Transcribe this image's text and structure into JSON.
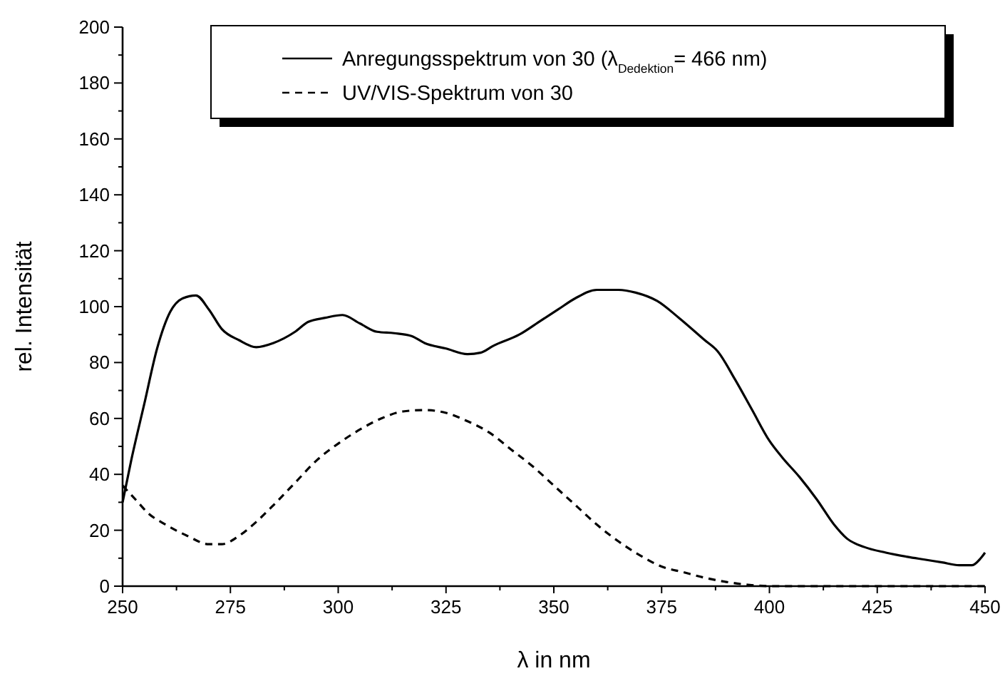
{
  "chart_data": {
    "type": "line",
    "xlabel": "λ in nm",
    "ylabel": "rel. Intensität",
    "xlim": [
      250,
      450
    ],
    "ylim": [
      0,
      200
    ],
    "xticks": [
      250,
      {
        "value": 262.5,
        "label": null
      },
      275,
      {
        "value": 287.5,
        "label": null
      },
      300,
      {
        "value": 312.5,
        "label": null
      },
      325,
      {
        "value": 337.5,
        "label": null
      },
      350,
      {
        "value": 362.5,
        "label": null
      },
      375,
      {
        "value": 387.5,
        "label": null
      },
      400,
      {
        "value": 412.5,
        "label": null
      },
      425,
      {
        "value": 437.5,
        "label": null
      },
      450
    ],
    "yticks": [
      0,
      {
        "value": 10,
        "label": null
      },
      20,
      {
        "value": 30,
        "label": null
      },
      40,
      {
        "value": 50,
        "label": null
      },
      60,
      {
        "value": 70,
        "label": null
      },
      80,
      {
        "value": 90,
        "label": null
      },
      100,
      {
        "value": 110,
        "label": null
      },
      120,
      {
        "value": 130,
        "label": null
      },
      140,
      {
        "value": 150,
        "label": null
      },
      160,
      {
        "value": 170,
        "label": null
      },
      180,
      {
        "value": 190,
        "label": null
      },
      200
    ],
    "grid": false,
    "legend": "top",
    "marker": "none",
    "series": [
      {
        "name": "Anregungsspektrum von 30 (λ$_{Dedektion}$= 466 nm)",
        "color": "#000000",
        "line_style": "solid",
        "x": [
          250,
          252,
          255,
          258,
          261,
          264,
          267,
          270,
          273,
          277,
          281,
          285,
          290,
          293,
          297,
          301,
          305,
          309,
          313,
          317,
          320,
          325,
          330,
          333,
          336,
          342,
          347,
          351,
          355,
          360,
          365,
          369,
          374,
          379,
          385,
          388,
          392,
          396,
          400,
          403,
          407,
          411,
          415,
          418,
          422,
          427,
          432,
          436,
          440,
          444,
          447,
          449,
          450
        ],
        "values": [
          30,
          45,
          65,
          85,
          98,
          103,
          104,
          99,
          92,
          88,
          85.5,
          87,
          91,
          94.5,
          96,
          97,
          94,
          91,
          90.5,
          89.5,
          87,
          85,
          83,
          83.5,
          86,
          90,
          95,
          99,
          103,
          106,
          106,
          105,
          102,
          96,
          88,
          84,
          74,
          63,
          52,
          46,
          39,
          31,
          22,
          17,
          14,
          12,
          10.5,
          9.5,
          8.5,
          7.5,
          7.5,
          10,
          12
        ]
      },
      {
        "name": "UV/VIS-Spektrum von 30",
        "color": "#000000",
        "line_style": "dashed",
        "x": [
          250,
          253,
          256,
          260,
          265,
          270,
          273,
          277,
          281,
          285,
          290,
          295,
          300,
          305,
          310,
          315,
          320,
          325,
          330,
          335,
          340,
          345,
          350,
          355,
          360,
          365,
          370,
          375,
          380,
          385,
          390,
          395,
          400,
          425,
          450
        ],
        "values": [
          36,
          31,
          26,
          22,
          18,
          15,
          15,
          18,
          23,
          29,
          37,
          45,
          51,
          56,
          60,
          62.5,
          63,
          62,
          59,
          55,
          49,
          43,
          36,
          29,
          22,
          16,
          11,
          7,
          5,
          3,
          1.5,
          0.5,
          0,
          0,
          0
        ]
      }
    ]
  }
}
